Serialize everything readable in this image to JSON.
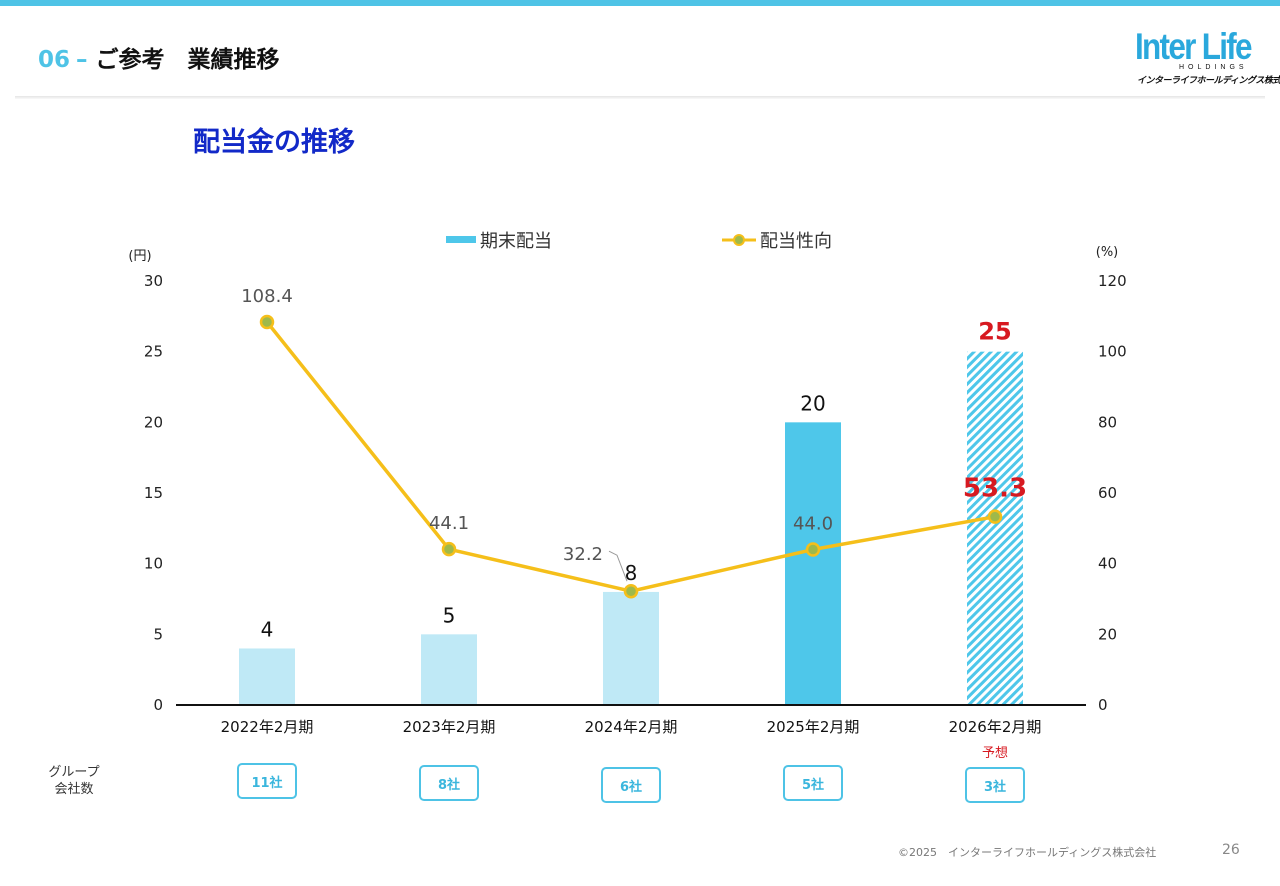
{
  "header": {
    "section_number": "06",
    "section_title": "ご参考　業績推移",
    "logo_main": "Inter Life",
    "logo_sub": "HOLDINGS",
    "logo_kana": "インターライフホールディングス株式会社"
  },
  "slide_title": "配当金の推移",
  "chart_data": {
    "type": "bar+line",
    "categories": [
      "2022年2月期",
      "2023年2月期",
      "2024年2月期",
      "2025年2月期",
      "2026年2月期"
    ],
    "forecast_note": "予想",
    "left_axis": {
      "label": "(円)",
      "ylim": [
        0,
        30
      ],
      "ticks": [
        0,
        5,
        10,
        15,
        20,
        25,
        30
      ]
    },
    "right_axis": {
      "label": "(%)",
      "ylim": [
        0,
        120
      ],
      "ticks": [
        0,
        20,
        40,
        60,
        80,
        100,
        120
      ]
    },
    "series": [
      {
        "name": "期末配当",
        "kind": "bar",
        "axis": "left",
        "values": [
          4,
          5,
          8,
          20,
          25
        ],
        "labels": [
          "4",
          "5",
          "8",
          "20",
          "25"
        ]
      },
      {
        "name": "配当性向",
        "kind": "line",
        "axis": "right",
        "values": [
          108.4,
          44.1,
          32.2,
          44.0,
          53.3
        ],
        "labels": [
          "108.4",
          "44.1",
          "32.2",
          "44.0",
          "53.3"
        ]
      }
    ],
    "legend": "top-center",
    "grid": false
  },
  "colors": {
    "accent": "#4ec3e6",
    "bar_light": "#bfe9f6",
    "bar_highlight": "#4ec7ea",
    "line": "#f5bf1a",
    "marker": "#9fb94a",
    "forecast_red": "#d71920",
    "title_blue": "#1229c8"
  },
  "group_companies": {
    "label": "グループ\n会社数",
    "counts": [
      "11社",
      "8社",
      "6社",
      "5社",
      "3社"
    ]
  },
  "footer": {
    "copyright": "©2025　インターライフホールディングス株式会社",
    "page": "26"
  }
}
